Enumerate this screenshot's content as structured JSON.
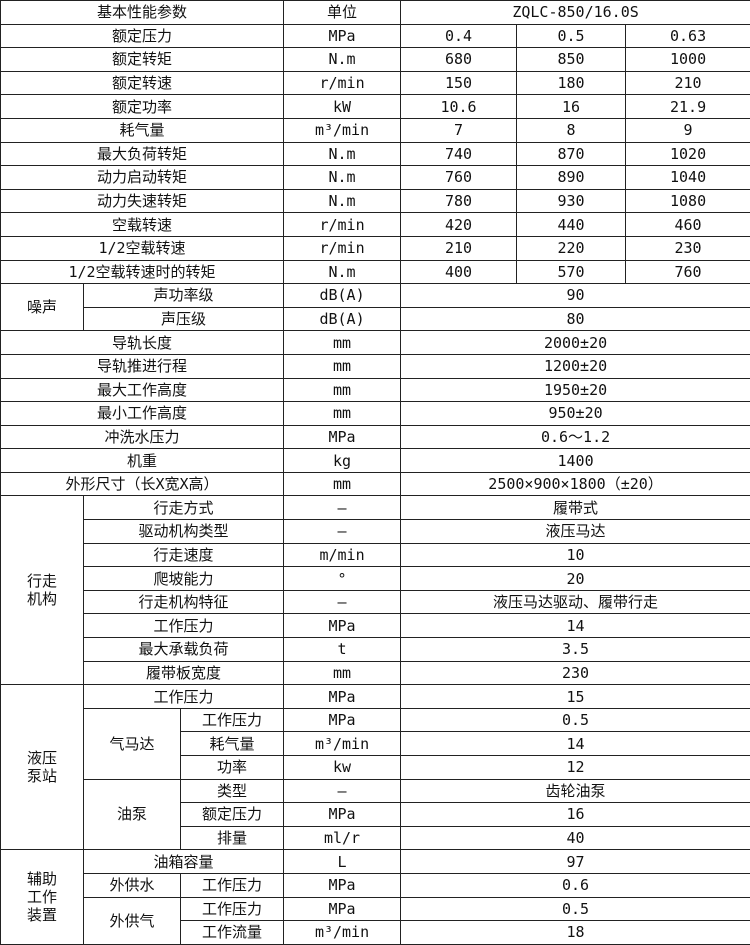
{
  "rows": [
    [
      {
        "t": "基本性能参数",
        "cs": 3
      },
      {
        "t": "单位"
      },
      {
        "t": "ZQLC-850/16.0S",
        "cs": 3
      }
    ],
    [
      {
        "t": "额定压力",
        "cs": 3
      },
      {
        "t": "MPa"
      },
      {
        "t": "0.4"
      },
      {
        "t": "0.5"
      },
      {
        "t": "0.63"
      }
    ],
    [
      {
        "t": "额定转矩",
        "cs": 3
      },
      {
        "t": "N.m"
      },
      {
        "t": "680"
      },
      {
        "t": "850"
      },
      {
        "t": "1000"
      }
    ],
    [
      {
        "t": "额定转速",
        "cs": 3
      },
      {
        "t": "r/min"
      },
      {
        "t": "150"
      },
      {
        "t": "180"
      },
      {
        "t": "210"
      }
    ],
    [
      {
        "t": "额定功率",
        "cs": 3
      },
      {
        "t": "kW"
      },
      {
        "t": "10.6"
      },
      {
        "t": "16"
      },
      {
        "t": "21.9"
      }
    ],
    [
      {
        "t": "耗气量",
        "cs": 3
      },
      {
        "t": "m³/min"
      },
      {
        "t": "7"
      },
      {
        "t": "8"
      },
      {
        "t": "9"
      }
    ],
    [
      {
        "t": "最大负荷转矩",
        "cs": 3
      },
      {
        "t": "N.m"
      },
      {
        "t": "740"
      },
      {
        "t": "870"
      },
      {
        "t": "1020"
      }
    ],
    [
      {
        "t": "动力启动转矩",
        "cs": 3
      },
      {
        "t": "N.m"
      },
      {
        "t": "760"
      },
      {
        "t": "890"
      },
      {
        "t": "1040"
      }
    ],
    [
      {
        "t": "动力失速转矩",
        "cs": 3
      },
      {
        "t": "N.m"
      },
      {
        "t": "780"
      },
      {
        "t": "930"
      },
      {
        "t": "1080"
      }
    ],
    [
      {
        "t": "空载转速",
        "cs": 3
      },
      {
        "t": "r/min"
      },
      {
        "t": "420"
      },
      {
        "t": "440"
      },
      {
        "t": "460"
      }
    ],
    [
      {
        "t": "1/2空载转速",
        "cs": 3
      },
      {
        "t": "r/min"
      },
      {
        "t": "210"
      },
      {
        "t": "220"
      },
      {
        "t": "230"
      }
    ],
    [
      {
        "t": "1/2空载转速时的转矩",
        "cs": 3
      },
      {
        "t": "N.m"
      },
      {
        "t": "400"
      },
      {
        "t": "570"
      },
      {
        "t": "760"
      }
    ],
    [
      {
        "t": "噪声",
        "rs": 2
      },
      {
        "t": "声功率级",
        "cs": 2
      },
      {
        "t": "dB(A)"
      },
      {
        "t": "90",
        "cs": 3
      }
    ],
    [
      {
        "t": "声压级",
        "cs": 2
      },
      {
        "t": "dB(A)"
      },
      {
        "t": "80",
        "cs": 3
      }
    ],
    [
      {
        "t": "导轨长度",
        "cs": 3
      },
      {
        "t": "mm"
      },
      {
        "t": "2000±20",
        "cs": 3
      }
    ],
    [
      {
        "t": "导轨推进行程",
        "cs": 3
      },
      {
        "t": "mm"
      },
      {
        "t": "1200±20",
        "cs": 3
      }
    ],
    [
      {
        "t": "最大工作高度",
        "cs": 3
      },
      {
        "t": "mm"
      },
      {
        "t": "1950±20",
        "cs": 3
      }
    ],
    [
      {
        "t": "最小工作高度",
        "cs": 3
      },
      {
        "t": "mm"
      },
      {
        "t": "950±20",
        "cs": 3
      }
    ],
    [
      {
        "t": "冲洗水压力",
        "cs": 3
      },
      {
        "t": "MPa"
      },
      {
        "t": "0.6～1.2",
        "cs": 3
      }
    ],
    [
      {
        "t": "机重",
        "cs": 3
      },
      {
        "t": "kg"
      },
      {
        "t": "1400",
        "cs": 3
      }
    ],
    [
      {
        "t": "外形尺寸（长X宽X高）",
        "cs": 3
      },
      {
        "t": "mm"
      },
      {
        "t": "2500×900×1800（±20）",
        "cs": 3
      }
    ],
    [
      {
        "t": "行走\n机构",
        "rs": 8
      },
      {
        "t": "行走方式",
        "cs": 2
      },
      {
        "t": "—"
      },
      {
        "t": "履带式",
        "cs": 3
      }
    ],
    [
      {
        "t": "驱动机构类型",
        "cs": 2
      },
      {
        "t": "—"
      },
      {
        "t": "液压马达",
        "cs": 3
      }
    ],
    [
      {
        "t": "行走速度",
        "cs": 2
      },
      {
        "t": "m/min"
      },
      {
        "t": "10",
        "cs": 3
      }
    ],
    [
      {
        "t": "爬坡能力",
        "cs": 2
      },
      {
        "t": "°"
      },
      {
        "t": "20",
        "cs": 3
      }
    ],
    [
      {
        "t": "行走机构特征",
        "cs": 2
      },
      {
        "t": "—"
      },
      {
        "t": "液压马达驱动、履带行走",
        "cs": 3
      }
    ],
    [
      {
        "t": "工作压力",
        "cs": 2
      },
      {
        "t": "MPa"
      },
      {
        "t": "14",
        "cs": 3
      }
    ],
    [
      {
        "t": "最大承载负荷",
        "cs": 2
      },
      {
        "t": "t"
      },
      {
        "t": "3.5",
        "cs": 3
      }
    ],
    [
      {
        "t": "履带板宽度",
        "cs": 2
      },
      {
        "t": "mm"
      },
      {
        "t": "230",
        "cs": 3
      }
    ],
    [
      {
        "t": "液压\n泵站",
        "rs": 7
      },
      {
        "t": "工作压力",
        "cs": 2
      },
      {
        "t": "MPa"
      },
      {
        "t": "15",
        "cs": 3
      }
    ],
    [
      {
        "t": "气马达",
        "rs": 3
      },
      {
        "t": "工作压力"
      },
      {
        "t": "MPa"
      },
      {
        "t": "0.5",
        "cs": 3
      }
    ],
    [
      {
        "t": "耗气量"
      },
      {
        "t": "m³/min"
      },
      {
        "t": "14",
        "cs": 3
      }
    ],
    [
      {
        "t": "功率"
      },
      {
        "t": "kw"
      },
      {
        "t": "12",
        "cs": 3
      }
    ],
    [
      {
        "t": "油泵",
        "rs": 3
      },
      {
        "t": "类型"
      },
      {
        "t": "—"
      },
      {
        "t": "齿轮油泵",
        "cs": 3
      }
    ],
    [
      {
        "t": "额定压力"
      },
      {
        "t": "MPa"
      },
      {
        "t": "16",
        "cs": 3
      }
    ],
    [
      {
        "t": "排量"
      },
      {
        "t": "ml/r"
      },
      {
        "t": "40",
        "cs": 3
      }
    ],
    [
      {
        "t": "辅助\n工作\n装置",
        "rs": 4
      },
      {
        "t": "油箱容量",
        "cs": 2
      },
      {
        "t": "L"
      },
      {
        "t": "97",
        "cs": 3
      }
    ],
    [
      {
        "t": "外供水"
      },
      {
        "t": "工作压力"
      },
      {
        "t": "MPa"
      },
      {
        "t": "0.6",
        "cs": 3
      }
    ],
    [
      {
        "t": "外供气",
        "rs": 2
      },
      {
        "t": "工作压力"
      },
      {
        "t": "MPa"
      },
      {
        "t": "0.5",
        "cs": 3
      }
    ],
    [
      {
        "t": "工作流量"
      },
      {
        "t": "m³/min"
      },
      {
        "t": "18",
        "cs": 3
      }
    ]
  ]
}
